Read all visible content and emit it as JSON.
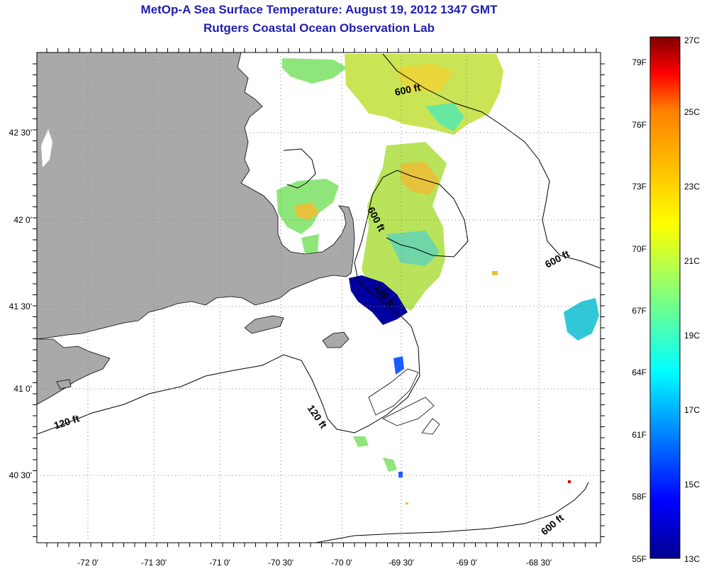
{
  "header": {
    "title": "MetOp-A Sea Surface Temperature:  August 19, 2012 1347 GMT",
    "subtitle": "Rutgers Coastal Ocean Observation Lab"
  },
  "map": {
    "lon_labels": [
      "-72 0'",
      "-71 30'",
      "-71 0'",
      "-70 30'",
      "-70 0'",
      "-69 30'",
      "-69 0'",
      "-68 30'"
    ],
    "lat_labels": [
      "42 30'",
      "42 0'",
      "41 30'",
      "41 0'",
      "40 30'"
    ],
    "contour_labels": [
      "600 ft",
      "600 ft",
      "600 ft",
      "600 ft",
      "120 ft",
      "120 ft",
      "120 ft"
    ],
    "land_color": "#a9a9a9",
    "ocean_color": "#ffffff"
  },
  "colorbar": {
    "celsius_labels": [
      "27C",
      "25C",
      "23C",
      "21C",
      "19C",
      "17C",
      "15C",
      "13C"
    ],
    "fahrenheit_labels": [
      "79F",
      "76F",
      "73F",
      "70F",
      "67F",
      "64F",
      "61F",
      "58F",
      "55F"
    ],
    "range_c": [
      13,
      27
    ],
    "colors": [
      "#00008f",
      "#0000ff",
      "#007fff",
      "#00ffff",
      "#7fff7f",
      "#ffff00",
      "#ff7f00",
      "#ff0000",
      "#7f0000"
    ]
  }
}
